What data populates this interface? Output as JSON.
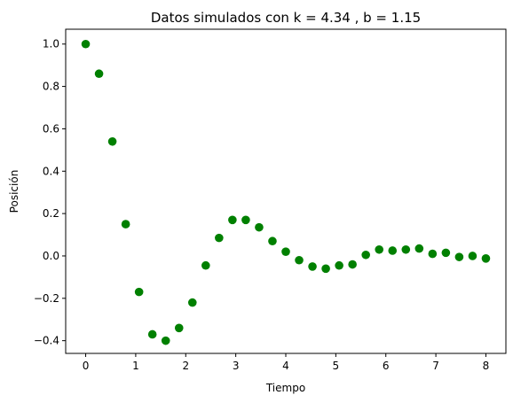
{
  "chart_data": {
    "type": "scatter",
    "title": "Datos simulados con k = 4.34 , b = 1.15",
    "xlabel": "Tiempo",
    "ylabel": "Posición",
    "xlim": [
      -0.4,
      8.4
    ],
    "ylim": [
      -0.46,
      1.07
    ],
    "xticks": [
      0,
      1,
      2,
      3,
      4,
      5,
      6,
      7,
      8
    ],
    "xtick_labels": [
      "0",
      "1",
      "2",
      "3",
      "4",
      "5",
      "6",
      "7",
      "8"
    ],
    "yticks": [
      -0.4,
      -0.2,
      0.0,
      0.2,
      0.4,
      0.6,
      0.8,
      1.0
    ],
    "ytick_labels": [
      "−0.4",
      "−0.2",
      "0.0",
      "0.2",
      "0.4",
      "0.6",
      "0.8",
      "1.0"
    ],
    "grid": false,
    "marker_color": "#008000",
    "series": [
      {
        "x": [
          0.0,
          0.2667,
          0.5333,
          0.8,
          1.0667,
          1.3333,
          1.6,
          1.8667,
          2.1333,
          2.4,
          2.6667,
          2.9333,
          3.2,
          3.4667,
          3.7333,
          4.0,
          4.2667,
          4.5333,
          4.8,
          5.0667,
          5.3333,
          5.6,
          5.8667,
          6.1333,
          6.4,
          6.6667,
          6.9333,
          7.2,
          7.4667,
          7.7333,
          8.0
        ],
        "y": [
          1.0,
          0.86,
          0.54,
          0.15,
          -0.17,
          -0.37,
          -0.4,
          -0.34,
          -0.22,
          -0.045,
          0.085,
          0.17,
          0.17,
          0.135,
          0.07,
          0.02,
          -0.02,
          -0.05,
          -0.06,
          -0.045,
          -0.04,
          0.005,
          0.03,
          0.025,
          0.03,
          0.035,
          0.01,
          0.015,
          -0.005,
          0.0,
          -0.012
        ]
      }
    ]
  }
}
